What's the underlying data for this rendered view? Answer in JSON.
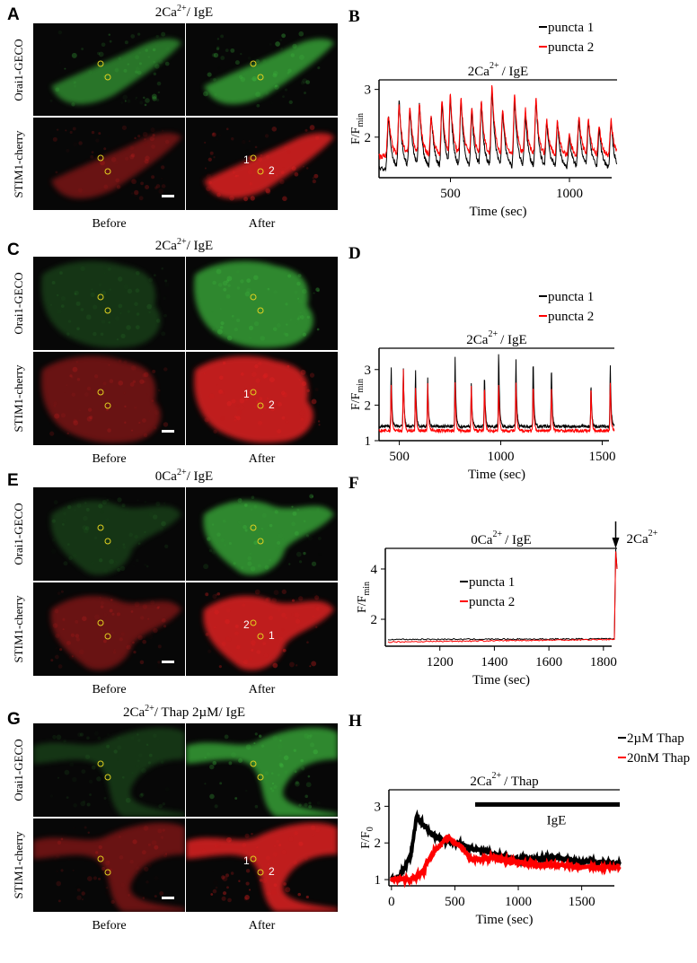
{
  "panels": {
    "A": {
      "letter": "A",
      "title": "2Ca",
      "title_sup": "2+",
      "title_tail": "/ IgE",
      "row1": "Orai1-GECO",
      "row2": "STIM1-cherry",
      "before": "Before",
      "after": "After",
      "num1": "1",
      "num2": "2"
    },
    "C": {
      "letter": "C",
      "title": "2Ca",
      "title_sup": "2+",
      "title_tail": "/ IgE",
      "row1": "Orai1-GECO",
      "row2": "STIM1-cherry",
      "before": "Before",
      "after": "After",
      "num1": "1",
      "num2": "2"
    },
    "E": {
      "letter": "E",
      "title": "0Ca",
      "title_sup": "2+",
      "title_tail": "/ IgE",
      "row1": "Orai1-GECO",
      "row2": "STIM1-cherry",
      "before": "Before",
      "after": "After",
      "num1": "2",
      "num2": "1"
    },
    "G": {
      "letter": "G",
      "title": "2Ca",
      "title_sup": "2+",
      "title_tail": "/ Thap 2µM/ IgE",
      "row1": "Orai1-GECO",
      "row2": "STIM1-cherry",
      "before": "Before",
      "after": "After",
      "num1": "1",
      "num2": "2"
    }
  },
  "colors": {
    "green": "#3fbf3f",
    "red": "#e02020",
    "roi": "#e0d020",
    "black": "#000000",
    "series_red": "#ff0000"
  },
  "chart_data": [
    {
      "id": "B",
      "letter": "B",
      "type": "line",
      "title": "2Ca",
      "title_sup": "2+",
      "title_tail": "/ IgE",
      "xlabel": "Time (sec)",
      "ylabel": "F/F",
      "ylabel_sub": "min",
      "xlim": [
        200,
        1200
      ],
      "ylim": [
        1.15,
        3.2
      ],
      "xticks": [
        500,
        1000
      ],
      "yticks": [
        2,
        3
      ],
      "legend_position": "top-right",
      "series": [
        {
          "name": "puncta 1",
          "color": "#000000",
          "baseline": 1.35,
          "peaks": [
            [
              240,
              2.45
            ],
            [
              285,
              2.75
            ],
            [
              330,
              2.6
            ],
            [
              370,
              2.7
            ],
            [
              420,
              2.5
            ],
            [
              465,
              2.75
            ],
            [
              500,
              2.85
            ],
            [
              545,
              2.8
            ],
            [
              590,
              2.6
            ],
            [
              630,
              2.7
            ],
            [
              675,
              3.0
            ],
            [
              720,
              2.55
            ],
            [
              770,
              2.8
            ],
            [
              815,
              2.5
            ],
            [
              860,
              2.75
            ],
            [
              905,
              2.35
            ],
            [
              950,
              2.3
            ],
            [
              1000,
              2.0
            ],
            [
              1040,
              2.4
            ],
            [
              1080,
              2.35
            ],
            [
              1125,
              2.2
            ],
            [
              1175,
              2.3
            ]
          ]
        },
        {
          "name": "puncta 2",
          "color": "#ff0000",
          "baseline": 1.6,
          "peaks": [
            [
              240,
              2.5
            ],
            [
              285,
              2.7
            ],
            [
              330,
              2.65
            ],
            [
              370,
              2.7
            ],
            [
              420,
              2.45
            ],
            [
              465,
              2.8
            ],
            [
              500,
              2.9
            ],
            [
              545,
              2.85
            ],
            [
              590,
              2.65
            ],
            [
              630,
              2.8
            ],
            [
              675,
              3.12
            ],
            [
              720,
              2.6
            ],
            [
              770,
              2.9
            ],
            [
              815,
              2.6
            ],
            [
              860,
              2.8
            ],
            [
              905,
              2.4
            ],
            [
              950,
              2.35
            ],
            [
              1000,
              2.05
            ],
            [
              1040,
              2.45
            ],
            [
              1080,
              2.4
            ],
            [
              1125,
              2.25
            ],
            [
              1175,
              2.35
            ]
          ]
        }
      ]
    },
    {
      "id": "D",
      "letter": "D",
      "type": "line",
      "title": "2Ca",
      "title_sup": "2+",
      "title_tail": "/ IgE",
      "xlabel": "Time (sec)",
      "ylabel": "F/F",
      "ylabel_sub": "min",
      "xlim": [
        400,
        1560
      ],
      "ylim": [
        1,
        3.6
      ],
      "xticks": [
        500,
        1000,
        1500
      ],
      "yticks": [
        1,
        2,
        3
      ],
      "legend_position": "top-right",
      "series": [
        {
          "name": "puncta 1",
          "color": "#000000",
          "baseline": 1.4,
          "peaks": [
            [
              460,
              3.05
            ],
            [
              520,
              3.05
            ],
            [
              580,
              2.95
            ],
            [
              640,
              2.75
            ],
            [
              775,
              3.35
            ],
            [
              855,
              2.65
            ],
            [
              920,
              2.9
            ],
            [
              990,
              3.55
            ],
            [
              1075,
              3.25
            ],
            [
              1160,
              3.35
            ],
            [
              1250,
              3.1
            ],
            [
              1445,
              2.6
            ],
            [
              1540,
              3.1
            ]
          ]
        },
        {
          "name": "puncta 2",
          "color": "#ff0000",
          "baseline": 1.28,
          "peaks": [
            [
              460,
              2.6
            ],
            [
              520,
              3.05
            ],
            [
              580,
              2.5
            ],
            [
              640,
              2.6
            ],
            [
              775,
              2.6
            ],
            [
              855,
              2.6
            ],
            [
              920,
              2.6
            ],
            [
              990,
              2.6
            ],
            [
              1075,
              2.6
            ],
            [
              1160,
              2.6
            ],
            [
              1250,
              2.6
            ],
            [
              1445,
              2.6
            ],
            [
              1540,
              2.65
            ]
          ]
        }
      ]
    },
    {
      "id": "F",
      "letter": "F",
      "type": "line",
      "title": "0Ca",
      "title_sup": "2+",
      "title_tail": "/ IgE",
      "xlabel": "Time (sec)",
      "ylabel": "F/F",
      "ylabel_sub": "min",
      "xlim": [
        1000,
        1850
      ],
      "ylim": [
        0.93,
        4.82
      ],
      "xticks": [
        1200,
        1400,
        1600,
        1800
      ],
      "yticks": [
        2,
        4
      ],
      "legend_position": "center",
      "annotation": {
        "label": "2Ca",
        "label_sup": "2+",
        "arrow_at": 1845
      },
      "series": [
        {
          "name": "puncta 1",
          "color": "#000000",
          "points": [
            [
              1010,
              1.2
            ],
            [
              1840,
              1.22
            ],
            [
              1845,
              4.8
            ],
            [
              1850,
              4.0
            ]
          ]
        },
        {
          "name": "puncta 2",
          "color": "#ff0000",
          "points": [
            [
              1010,
              1.1
            ],
            [
              1840,
              1.2
            ],
            [
              1845,
              4.7
            ],
            [
              1850,
              4.0
            ]
          ]
        }
      ]
    },
    {
      "id": "H",
      "letter": "H",
      "type": "line",
      "title": "2Ca",
      "title_sup": "2+",
      "title_tail": "/ Thap",
      "xlabel": "Time (sec)",
      "ylabel": "F/F",
      "ylabel_sub": "0",
      "xlim": [
        -20,
        1800
      ],
      "ylim": [
        0.83,
        3.45
      ],
      "xticks": [
        0,
        500,
        1000,
        1500
      ],
      "yticks": [
        1,
        2,
        3
      ],
      "legend_position": "top-right",
      "annotation": {
        "bar_label": "IgE",
        "bar_range": [
          660,
          1800
        ]
      },
      "series": [
        {
          "name": "2µM Thap",
          "color": "#000000",
          "points": [
            [
              0,
              1
            ],
            [
              50,
              1.03
            ],
            [
              100,
              1.3
            ],
            [
              150,
              1.6
            ],
            [
              200,
              2.75
            ],
            [
              250,
              2.5
            ],
            [
              300,
              2.3
            ],
            [
              400,
              2.05
            ],
            [
              500,
              2.0
            ],
            [
              600,
              1.9
            ],
            [
              800,
              1.7
            ],
            [
              1000,
              1.55
            ],
            [
              1300,
              1.6
            ],
            [
              1500,
              1.45
            ],
            [
              1600,
              1.5
            ],
            [
              1800,
              1.42
            ]
          ]
        },
        {
          "name": "20nM Thap",
          "color": "#ff0000",
          "points": [
            [
              0,
              1
            ],
            [
              150,
              1.0
            ],
            [
              250,
              1.2
            ],
            [
              300,
              1.6
            ],
            [
              400,
              2.0
            ],
            [
              450,
              2.15
            ],
            [
              550,
              1.9
            ],
            [
              620,
              1.55
            ],
            [
              800,
              1.6
            ],
            [
              1000,
              1.45
            ],
            [
              1200,
              1.42
            ],
            [
              1500,
              1.35
            ],
            [
              1800,
              1.35
            ]
          ]
        }
      ]
    }
  ]
}
